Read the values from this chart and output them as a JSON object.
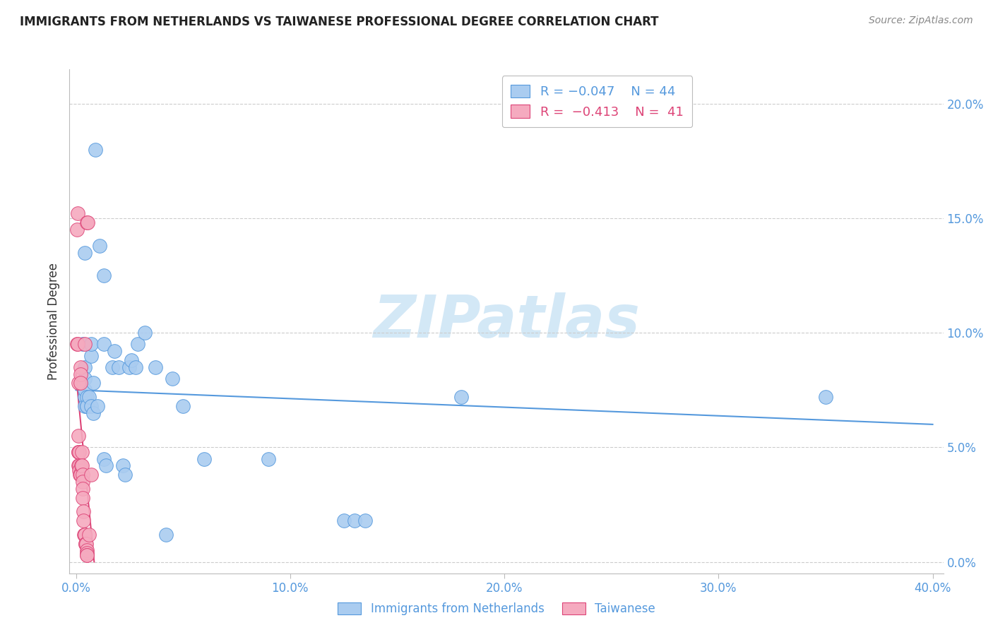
{
  "title": "IMMIGRANTS FROM NETHERLANDS VS TAIWANESE PROFESSIONAL DEGREE CORRELATION CHART",
  "source": "Source: ZipAtlas.com",
  "ylabel": "Professional Degree",
  "ytick_values": [
    0.0,
    5.0,
    10.0,
    15.0,
    20.0
  ],
  "xtick_values": [
    0.0,
    10.0,
    20.0,
    30.0,
    40.0
  ],
  "xlim": [
    -0.3,
    40.5
  ],
  "ylim": [
    -0.5,
    21.5
  ],
  "blue_color": "#aaccf0",
  "pink_color": "#f5aabf",
  "blue_line_color": "#5599dd",
  "pink_line_color": "#dd4477",
  "title_color": "#222222",
  "source_color": "#888888",
  "watermark": "ZIPatlas",
  "watermark_color": "#cce4f5",
  "blue_scatter": [
    [
      0.3,
      9.5
    ],
    [
      0.4,
      13.5
    ],
    [
      0.4,
      7.2
    ],
    [
      0.4,
      8.5
    ],
    [
      0.4,
      8.0
    ],
    [
      0.4,
      7.5
    ],
    [
      0.4,
      6.8
    ],
    [
      0.5,
      7.2
    ],
    [
      0.5,
      6.8
    ],
    [
      0.5,
      6.8
    ],
    [
      0.6,
      7.2
    ],
    [
      0.7,
      9.0
    ],
    [
      0.7,
      9.5
    ],
    [
      0.7,
      6.8
    ],
    [
      0.8,
      6.5
    ],
    [
      0.8,
      7.8
    ],
    [
      0.9,
      18.0
    ],
    [
      1.0,
      6.8
    ],
    [
      1.1,
      13.8
    ],
    [
      1.3,
      12.5
    ],
    [
      1.3,
      9.5
    ],
    [
      1.3,
      4.5
    ],
    [
      1.4,
      4.2
    ],
    [
      1.7,
      8.5
    ],
    [
      1.8,
      9.2
    ],
    [
      2.0,
      8.5
    ],
    [
      2.2,
      4.2
    ],
    [
      2.3,
      3.8
    ],
    [
      2.5,
      8.5
    ],
    [
      2.6,
      8.8
    ],
    [
      2.8,
      8.5
    ],
    [
      2.9,
      9.5
    ],
    [
      3.2,
      10.0
    ],
    [
      3.7,
      8.5
    ],
    [
      4.2,
      1.2
    ],
    [
      4.5,
      8.0
    ],
    [
      5.0,
      6.8
    ],
    [
      6.0,
      4.5
    ],
    [
      9.0,
      4.5
    ],
    [
      12.5,
      1.8
    ],
    [
      13.0,
      1.8
    ],
    [
      13.5,
      1.8
    ],
    [
      18.0,
      7.2
    ],
    [
      35.0,
      7.2
    ]
  ],
  "pink_scatter": [
    [
      0.05,
      9.5
    ],
    [
      0.05,
      14.5
    ],
    [
      0.08,
      15.2
    ],
    [
      0.08,
      9.5
    ],
    [
      0.1,
      7.8
    ],
    [
      0.1,
      5.5
    ],
    [
      0.12,
      4.8
    ],
    [
      0.12,
      4.8
    ],
    [
      0.12,
      4.2
    ],
    [
      0.15,
      4.8
    ],
    [
      0.15,
      4.2
    ],
    [
      0.15,
      4.0
    ],
    [
      0.18,
      3.8
    ],
    [
      0.2,
      3.8
    ],
    [
      0.2,
      8.5
    ],
    [
      0.2,
      8.2
    ],
    [
      0.22,
      7.8
    ],
    [
      0.25,
      4.2
    ],
    [
      0.28,
      4.8
    ],
    [
      0.28,
      4.2
    ],
    [
      0.3,
      3.8
    ],
    [
      0.3,
      3.5
    ],
    [
      0.32,
      3.2
    ],
    [
      0.32,
      2.8
    ],
    [
      0.35,
      2.2
    ],
    [
      0.35,
      1.8
    ],
    [
      0.38,
      1.2
    ],
    [
      0.4,
      1.2
    ],
    [
      0.4,
      9.5
    ],
    [
      0.42,
      1.2
    ],
    [
      0.45,
      0.8
    ],
    [
      0.45,
      0.8
    ],
    [
      0.48,
      0.8
    ],
    [
      0.5,
      0.5
    ],
    [
      0.5,
      0.4
    ],
    [
      0.5,
      0.3
    ],
    [
      0.52,
      0.3
    ],
    [
      0.52,
      14.8
    ],
    [
      0.55,
      14.8
    ],
    [
      0.6,
      1.2
    ],
    [
      0.7,
      3.8
    ]
  ],
  "blue_trend_x": [
    0.0,
    40.0
  ],
  "blue_trend_y": [
    7.5,
    6.0
  ],
  "pink_trend_x": [
    0.0,
    0.85
  ],
  "pink_trend_y": [
    8.2,
    0.0
  ]
}
